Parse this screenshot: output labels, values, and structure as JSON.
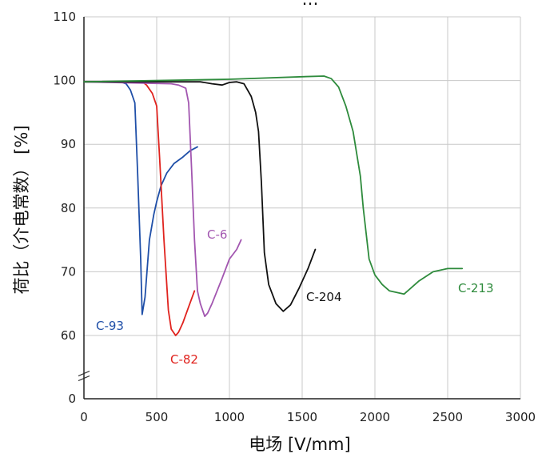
{
  "chart_data": {
    "type": "line",
    "title": "…",
    "xlabel": "电场 [V/mm]",
    "ylabel": "荷比（介电常数） [%]",
    "xlim": [
      0,
      3000
    ],
    "ylim": [
      0,
      110
    ],
    "x_ticks": [
      0,
      500,
      1000,
      1500,
      2000,
      2500,
      3000
    ],
    "y_ticks": [
      0,
      60,
      70,
      80,
      90,
      100,
      110
    ],
    "y_axis_break": "between 0 and 60",
    "grid": true,
    "legend": "none (series labeled directly on plot)",
    "series": [
      {
        "name": "C-93",
        "color": "#1f4fa8",
        "x": [
          0,
          250,
          290,
          320,
          350,
          370,
          390,
          400,
          420,
          450,
          480,
          500,
          530,
          570,
          620,
          680,
          730,
          780
        ],
        "y": [
          99.8,
          99.8,
          99.5,
          98.5,
          96.5,
          85,
          72,
          63.3,
          66,
          75,
          79,
          81,
          83.5,
          85.5,
          87,
          88,
          89,
          89.6
        ]
      },
      {
        "name": "C-82",
        "color": "#e0231e",
        "x": [
          0,
          400,
          430,
          470,
          500,
          520,
          550,
          580,
          600,
          630,
          650,
          680,
          720,
          760
        ],
        "y": [
          99.8,
          99.8,
          99.3,
          98,
          96,
          88,
          75,
          64,
          61,
          60,
          60.5,
          62,
          64.5,
          67
        ]
      },
      {
        "name": "C-6",
        "color": "#a256b0",
        "x": [
          0,
          600,
          650,
          700,
          720,
          740,
          760,
          780,
          800,
          830,
          850,
          880,
          950,
          1000,
          1050,
          1080
        ],
        "y": [
          99.8,
          99.5,
          99.3,
          98.8,
          96.5,
          86,
          75,
          67,
          65,
          63,
          63.5,
          65,
          69,
          72,
          73.5,
          75
        ]
      },
      {
        "name": "C-204",
        "color": "#111111",
        "x": [
          0,
          800,
          880,
          950,
          1000,
          1050,
          1100,
          1150,
          1180,
          1200,
          1220,
          1240,
          1270,
          1320,
          1370,
          1420,
          1480,
          1540,
          1590
        ],
        "y": [
          99.8,
          99.8,
          99.5,
          99.3,
          99.7,
          99.8,
          99.5,
          97.5,
          95,
          92,
          84,
          73,
          68,
          65,
          63.8,
          64.8,
          67.5,
          70.5,
          73.5
        ]
      },
      {
        "name": "C-213",
        "color": "#2e8b3c",
        "x": [
          0,
          1000,
          1500,
          1650,
          1700,
          1750,
          1800,
          1850,
          1900,
          1920,
          1960,
          2000,
          2050,
          2100,
          2200,
          2300,
          2400,
          2500,
          2600
        ],
        "y": [
          99.8,
          100.2,
          100.6,
          100.7,
          100.3,
          99,
          96,
          92,
          85,
          80,
          72,
          69.5,
          68,
          67,
          66.5,
          68.5,
          70,
          70.5,
          70.5
        ]
      }
    ]
  }
}
